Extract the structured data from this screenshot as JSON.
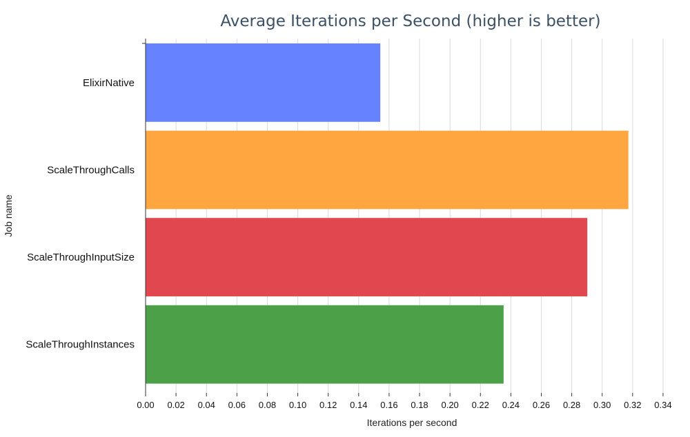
{
  "chart_data": {
    "type": "bar",
    "orientation": "horizontal",
    "title": "Average Iterations per Second (higher is better)",
    "xlabel": "Iterations per second",
    "ylabel": "Job name",
    "categories": [
      "ElixirNative",
      "ScaleThroughCalls",
      "ScaleThroughInputSize",
      "ScaleThroughInstances"
    ],
    "values": [
      0.154,
      0.317,
      0.29,
      0.235
    ],
    "colors": [
      "#6682ff",
      "#ffa640",
      "#e0474f",
      "#4ba048"
    ],
    "xlim": [
      0,
      0.35
    ],
    "x_ticks": [
      "0.00",
      "0.02",
      "0.04",
      "0.06",
      "0.08",
      "0.10",
      "0.12",
      "0.14",
      "0.16",
      "0.18",
      "0.20",
      "0.22",
      "0.24",
      "0.26",
      "0.28",
      "0.30",
      "0.32",
      "0.34"
    ],
    "grid": true,
    "legend": "none"
  }
}
